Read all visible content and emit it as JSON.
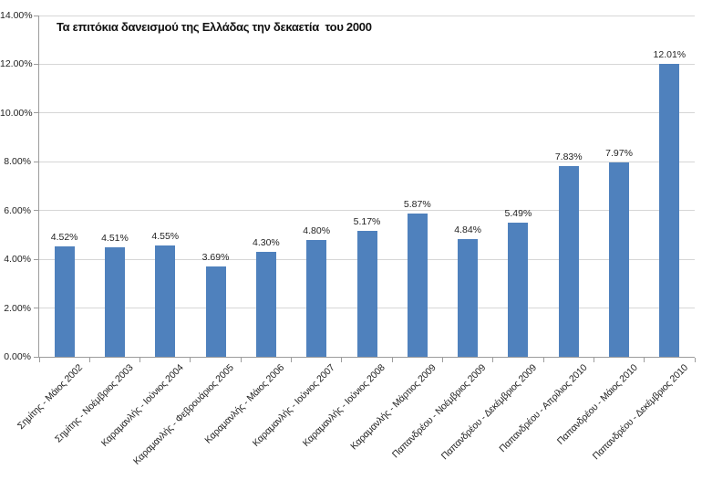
{
  "chart_data": {
    "type": "bar",
    "title": "Τα επιτόκια δανεισμού της Ελλάδας την δεκαετία  του 2000",
    "xlabel": "",
    "ylabel": "",
    "ylim": [
      0,
      14
    ],
    "ytick_step": 2,
    "ytick_labels": [
      "0.00%",
      "2.00%",
      "4.00%",
      "6.00%",
      "8.00%",
      "10.00%",
      "12.00%",
      "14.00%"
    ],
    "grid": true,
    "legend": "none",
    "categories": [
      "Σημίτης - Μάιος 2002",
      "Σημίτης - Νοέμβριος 2003",
      "Καραμανλής - Ιούνιος 2004",
      "Καραμανλής - Φεβρουάριος 2005",
      "Καραμανλής - Μάιος 2006",
      "Καραμανλής - Ιούνιος 2007",
      "Καραμανλής - Ιούνιος 2008",
      "Καραμανλής - Μάρτιος 2009",
      "Παπανδρέου - Νοέμβριος 2009",
      "Παπανδρέου - Δεκέμβριος 2009",
      "Παπανδρέου - Απρίλιος 2010",
      "Παπανδρέου - Μάιος 2010",
      "Παπανδρέου - Δεκέμβριος 2010"
    ],
    "values": [
      4.52,
      4.51,
      4.55,
      3.69,
      4.3,
      4.8,
      5.17,
      5.87,
      4.84,
      5.49,
      7.83,
      7.97,
      12.01
    ],
    "data_labels": [
      "4.52%",
      "4.51%",
      "4.55%",
      "3.69%",
      "4.30%",
      "4.80%",
      "5.17%",
      "5.87%",
      "4.84%",
      "5.49%",
      "7.83%",
      "7.97%",
      "12.01%"
    ],
    "bar_color": "#4F81BD",
    "gridline_color": "#D6D6D6",
    "axis_color": "#9C9C9C",
    "text_color": "#1F1F1F",
    "background_color": "#FFFFFF"
  }
}
